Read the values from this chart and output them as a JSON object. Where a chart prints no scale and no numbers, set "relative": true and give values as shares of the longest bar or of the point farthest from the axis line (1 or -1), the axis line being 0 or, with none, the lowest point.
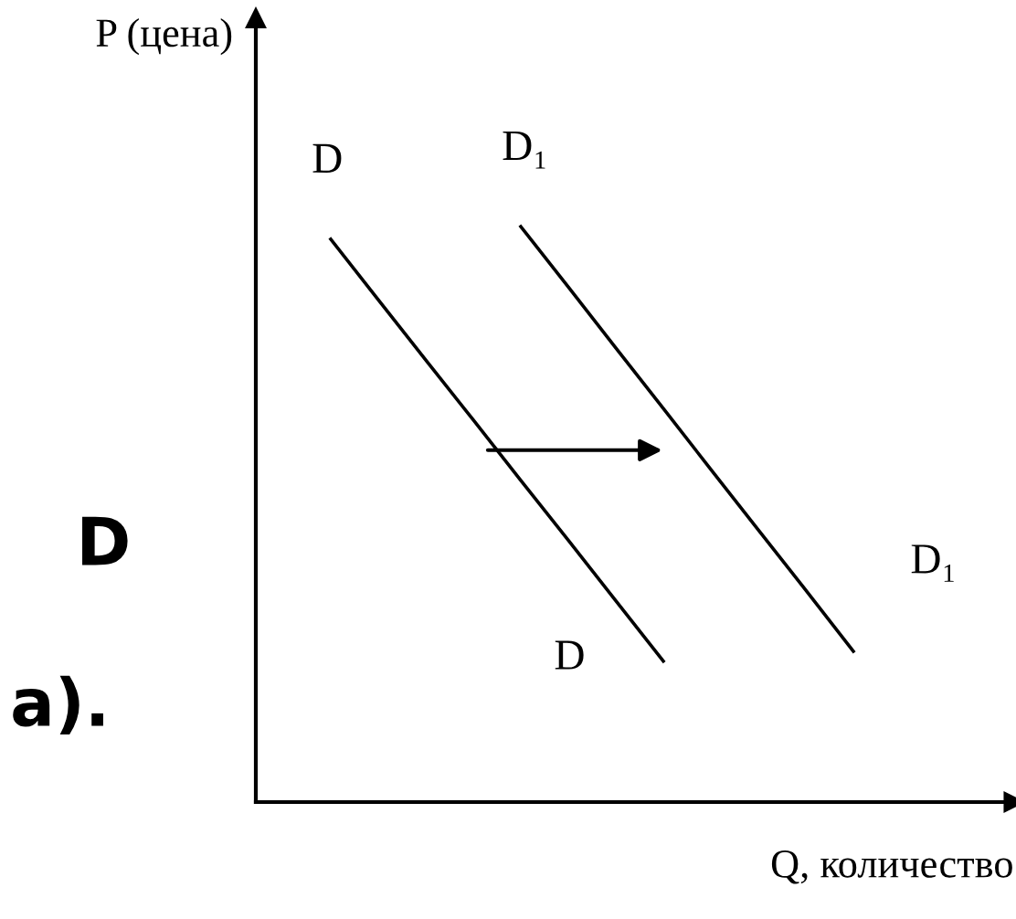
{
  "chart_data": {
    "type": "line",
    "relative": true,
    "xlabel": "Q, количество",
    "ylabel": "P (цена)",
    "categories": [
      null,
      null,
      null,
      null,
      null,
      null,
      null,
      null,
      null,
      null,
      null,
      null
    ],
    "series": [
      {
        "name": "D",
        "color": "#000000",
        "values": [
          0.978,
          0.873,
          0.768,
          0.664,
          0.559,
          0.455,
          0.35,
          0.245,
          null,
          null,
          null,
          null
        ]
      },
      {
        "name": "D₁",
        "color": "#000000",
        "values": [
          null,
          null,
          null,
          null,
          1,
          0.895,
          0.789,
          0.684,
          0.578,
          0.473,
          0.368,
          0.262
        ]
      }
    ],
    "annotations": [
      "D",
      "а)."
    ],
    "legend": false,
    "marker": "none",
    "line_style": "solid"
  }
}
